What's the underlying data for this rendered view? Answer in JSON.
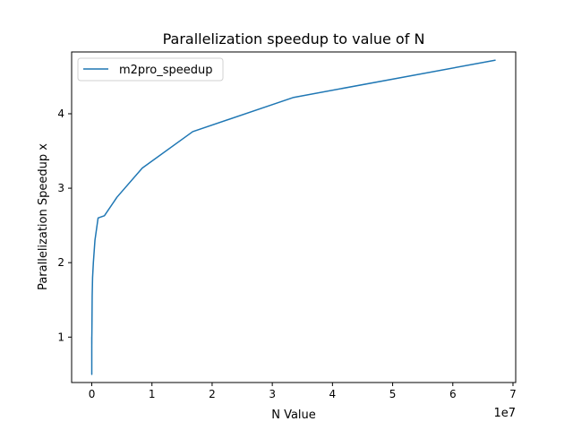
{
  "chart_data": {
    "type": "line",
    "title": "Parallelization speedup to value of N",
    "xlabel": "N Value",
    "ylabel": "Parallelization Speedup x",
    "x_offset_label": "1e7",
    "xlim": [
      -3350000,
      70450000
    ],
    "ylim": [
      0.39,
      4.83
    ],
    "x_ticks": [
      0,
      10000000,
      20000000,
      30000000,
      40000000,
      50000000,
      60000000,
      70000000
    ],
    "x_tick_labels": [
      "0",
      "1",
      "2",
      "3",
      "4",
      "5",
      "6",
      "7"
    ],
    "y_ticks": [
      1,
      2,
      3,
      4
    ],
    "y_tick_labels": [
      "1",
      "2",
      "3",
      "4"
    ],
    "grid": false,
    "legend_position": "upper left",
    "series": [
      {
        "name": "m2pro_speedup",
        "color": "#1f77b4",
        "x": [
          1,
          2,
          4,
          8,
          16,
          32,
          64,
          128,
          256,
          512,
          1024,
          2048,
          4096,
          8192,
          16384,
          32768,
          65536,
          131072,
          262144,
          524288,
          1048576,
          2097152,
          4194304,
          8388608,
          16777216,
          33554432,
          67108864
        ],
        "y": [
          0.68,
          1.0,
          0.72,
          0.95,
          0.5,
          0.85,
          0.7,
          0.9,
          0.75,
          0.8,
          0.85,
          0.95,
          0.9,
          1.0,
          1.05,
          1.2,
          1.55,
          1.8,
          2.0,
          2.3,
          2.6,
          2.63,
          2.88,
          3.27,
          3.76,
          4.22,
          4.72
        ]
      }
    ]
  }
}
